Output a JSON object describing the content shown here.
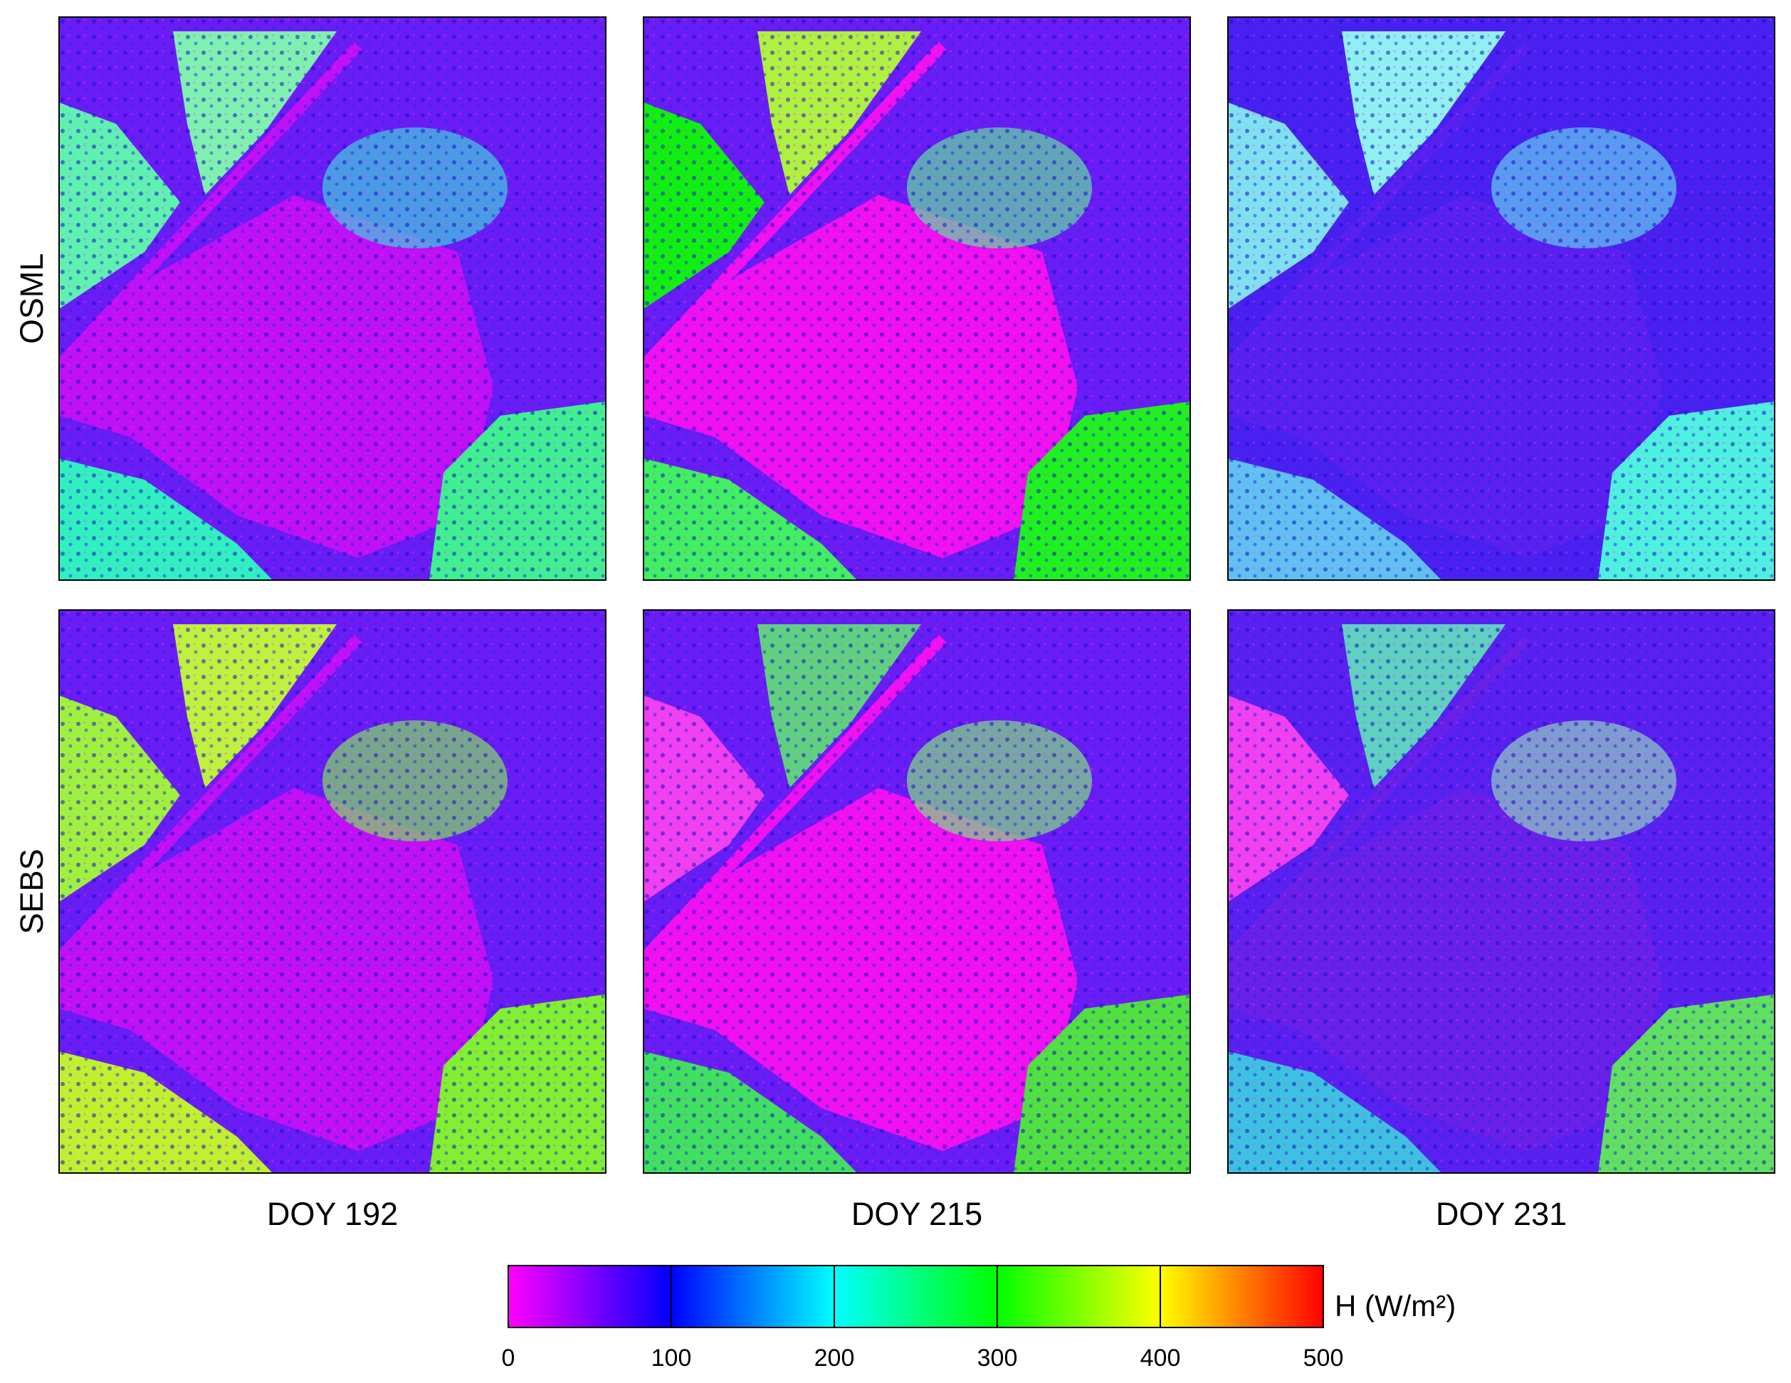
{
  "chart_data": {
    "type": "map",
    "rows": [
      "OSML",
      "SEBS"
    ],
    "columns": [
      "DOY 192",
      "DOY 215",
      "DOY 231"
    ],
    "colorbar": {
      "label": "H (W/m²)",
      "xlim": [
        0,
        500
      ],
      "xticks": [
        0,
        100,
        200,
        300,
        400,
        500
      ],
      "colors": [
        "#ff00ff",
        "#0000ff",
        "#00ffff",
        "#00ff00",
        "#ffff00",
        "#ff0000"
      ]
    }
  }
}
